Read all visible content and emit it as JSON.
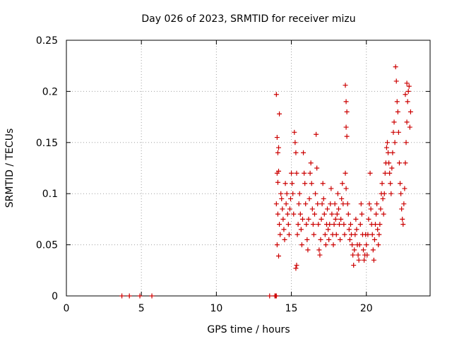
{
  "chart_data": {
    "type": "scatter",
    "title": "Day 026 of 2023, SRMTID for receiver mizu",
    "xlabel": "GPS time / hours",
    "ylabel": "SRMTID / TECUs",
    "xlim": [
      0,
      24.25
    ],
    "ylim": [
      0,
      0.25
    ],
    "xticks": [
      0,
      5,
      10,
      15,
      20
    ],
    "yticks": [
      0,
      0.05,
      0.1,
      0.15,
      0.2,
      0.25
    ],
    "xtick_labels": [
      "0",
      "5",
      "10",
      "15",
      "20"
    ],
    "ytick_labels": [
      "0",
      "0.05",
      "0.1",
      "0.15",
      "0.2",
      "0.25"
    ],
    "grid": true,
    "marker": "plus",
    "color": "#cc0000",
    "series": [
      {
        "points": [
          [
            3.7,
            0.0
          ],
          [
            4.2,
            0.0
          ],
          [
            4.9,
            0.0
          ],
          [
            5.7,
            0.0
          ],
          [
            13.55,
            0.0
          ],
          [
            13.9,
            0.0
          ],
          [
            13.95,
            0.0
          ],
          [
            14.0,
            0.0
          ],
          [
            14.0,
            0.197
          ],
          [
            14.05,
            0.155
          ],
          [
            14.1,
            0.14
          ],
          [
            14.15,
            0.145
          ],
          [
            14.2,
            0.178
          ],
          [
            14.05,
            0.12
          ],
          [
            14.1,
            0.111
          ],
          [
            14.15,
            0.122
          ],
          [
            14.0,
            0.09
          ],
          [
            14.1,
            0.08
          ],
          [
            14.2,
            0.07
          ],
          [
            14.05,
            0.05
          ],
          [
            14.15,
            0.039
          ],
          [
            14.25,
            0.06
          ],
          [
            14.3,
            0.1
          ],
          [
            14.35,
            0.095
          ],
          [
            14.4,
            0.085
          ],
          [
            14.45,
            0.075
          ],
          [
            14.5,
            0.065
          ],
          [
            14.55,
            0.055
          ],
          [
            14.6,
            0.11
          ],
          [
            14.65,
            0.09
          ],
          [
            14.7,
            0.1
          ],
          [
            14.75,
            0.08
          ],
          [
            14.8,
            0.07
          ],
          [
            14.85,
            0.06
          ],
          [
            14.9,
            0.085
          ],
          [
            14.95,
            0.095
          ],
          [
            15.0,
            0.12
          ],
          [
            15.05,
            0.11
          ],
          [
            15.1,
            0.1
          ],
          [
            15.15,
            0.08
          ],
          [
            15.2,
            0.16
          ],
          [
            15.25,
            0.15
          ],
          [
            15.3,
            0.14
          ],
          [
            15.35,
            0.12
          ],
          [
            15.3,
            0.027
          ],
          [
            15.35,
            0.03
          ],
          [
            15.4,
            0.06
          ],
          [
            15.45,
            0.07
          ],
          [
            15.5,
            0.09
          ],
          [
            15.55,
            0.1
          ],
          [
            15.6,
            0.08
          ],
          [
            15.65,
            0.065
          ],
          [
            15.7,
            0.05
          ],
          [
            15.75,
            0.075
          ],
          [
            15.8,
            0.14
          ],
          [
            15.85,
            0.12
          ],
          [
            15.9,
            0.11
          ],
          [
            15.95,
            0.09
          ],
          [
            16.0,
            0.07
          ],
          [
            16.05,
            0.055
          ],
          [
            16.1,
            0.045
          ],
          [
            16.15,
            0.075
          ],
          [
            16.2,
            0.095
          ],
          [
            16.25,
            0.12
          ],
          [
            16.3,
            0.13
          ],
          [
            16.35,
            0.11
          ],
          [
            16.4,
            0.085
          ],
          [
            16.45,
            0.07
          ],
          [
            16.5,
            0.06
          ],
          [
            16.55,
            0.08
          ],
          [
            16.6,
            0.1
          ],
          [
            16.65,
            0.158
          ],
          [
            16.7,
            0.125
          ],
          [
            16.75,
            0.09
          ],
          [
            16.8,
            0.07
          ],
          [
            16.85,
            0.045
          ],
          [
            16.9,
            0.04
          ],
          [
            16.95,
            0.055
          ],
          [
            17.0,
            0.075
          ],
          [
            17.05,
            0.09
          ],
          [
            17.1,
            0.11
          ],
          [
            17.15,
            0.095
          ],
          [
            17.2,
            0.08
          ],
          [
            17.25,
            0.06
          ],
          [
            17.3,
            0.05
          ],
          [
            17.35,
            0.07
          ],
          [
            17.4,
            0.085
          ],
          [
            17.45,
            0.065
          ],
          [
            17.5,
            0.055
          ],
          [
            17.55,
            0.07
          ],
          [
            17.6,
            0.09
          ],
          [
            17.65,
            0.105
          ],
          [
            17.7,
            0.08
          ],
          [
            17.75,
            0.06
          ],
          [
            17.8,
            0.05
          ],
          [
            17.85,
            0.07
          ],
          [
            17.9,
            0.09
          ],
          [
            17.95,
            0.075
          ],
          [
            18.0,
            0.06
          ],
          [
            18.05,
            0.08
          ],
          [
            18.1,
            0.1
          ],
          [
            18.15,
            0.085
          ],
          [
            18.2,
            0.07
          ],
          [
            18.25,
            0.055
          ],
          [
            18.3,
            0.075
          ],
          [
            18.35,
            0.095
          ],
          [
            18.4,
            0.11
          ],
          [
            18.45,
            0.09
          ],
          [
            18.5,
            0.07
          ],
          [
            18.55,
            0.06
          ],
          [
            18.6,
            0.12
          ],
          [
            18.65,
            0.105
          ],
          [
            18.6,
            0.206
          ],
          [
            18.65,
            0.19
          ],
          [
            18.7,
            0.18
          ],
          [
            18.65,
            0.165
          ],
          [
            18.7,
            0.156
          ],
          [
            18.75,
            0.09
          ],
          [
            18.8,
            0.08
          ],
          [
            18.85,
            0.065
          ],
          [
            18.9,
            0.055
          ],
          [
            18.95,
            0.07
          ],
          [
            19.0,
            0.06
          ],
          [
            19.05,
            0.05
          ],
          [
            19.1,
            0.04
          ],
          [
            19.15,
            0.03
          ],
          [
            19.2,
            0.045
          ],
          [
            19.25,
            0.06
          ],
          [
            19.3,
            0.075
          ],
          [
            19.35,
            0.065
          ],
          [
            19.4,
            0.05
          ],
          [
            19.45,
            0.04
          ],
          [
            19.5,
            0.035
          ],
          [
            19.55,
            0.05
          ],
          [
            19.6,
            0.07
          ],
          [
            19.65,
            0.09
          ],
          [
            19.7,
            0.08
          ],
          [
            19.75,
            0.06
          ],
          [
            19.8,
            0.045
          ],
          [
            19.85,
            0.035
          ],
          [
            19.9,
            0.04
          ],
          [
            19.95,
            0.06
          ],
          [
            20.0,
            0.05
          ],
          [
            20.05,
            0.04
          ],
          [
            20.1,
            0.06
          ],
          [
            20.15,
            0.075
          ],
          [
            20.2,
            0.09
          ],
          [
            20.25,
            0.12
          ],
          [
            20.3,
            0.085
          ],
          [
            20.35,
            0.07
          ],
          [
            20.4,
            0.06
          ],
          [
            20.45,
            0.045
          ],
          [
            20.5,
            0.035
          ],
          [
            20.55,
            0.055
          ],
          [
            20.6,
            0.07
          ],
          [
            20.65,
            0.08
          ],
          [
            20.7,
            0.09
          ],
          [
            20.75,
            0.065
          ],
          [
            20.8,
            0.05
          ],
          [
            20.85,
            0.06
          ],
          [
            20.9,
            0.07
          ],
          [
            20.95,
            0.085
          ],
          [
            21.0,
            0.1
          ],
          [
            21.05,
            0.11
          ],
          [
            21.1,
            0.095
          ],
          [
            21.15,
            0.08
          ],
          [
            21.2,
            0.1
          ],
          [
            21.25,
            0.12
          ],
          [
            21.3,
            0.13
          ],
          [
            21.35,
            0.145
          ],
          [
            21.4,
            0.15
          ],
          [
            21.45,
            0.14
          ],
          [
            21.5,
            0.13
          ],
          [
            21.55,
            0.12
          ],
          [
            21.6,
            0.11
          ],
          [
            21.65,
            0.1
          ],
          [
            21.7,
            0.125
          ],
          [
            21.75,
            0.14
          ],
          [
            21.8,
            0.16
          ],
          [
            21.85,
            0.17
          ],
          [
            21.9,
            0.15
          ],
          [
            21.95,
            0.224
          ],
          [
            22.0,
            0.21
          ],
          [
            22.05,
            0.19
          ],
          [
            22.1,
            0.18
          ],
          [
            22.15,
            0.16
          ],
          [
            22.2,
            0.13
          ],
          [
            22.25,
            0.11
          ],
          [
            22.3,
            0.1
          ],
          [
            22.35,
            0.085
          ],
          [
            22.4,
            0.075
          ],
          [
            22.45,
            0.07
          ],
          [
            22.5,
            0.09
          ],
          [
            22.55,
            0.105
          ],
          [
            22.6,
            0.13
          ],
          [
            22.65,
            0.15
          ],
          [
            22.7,
            0.17
          ],
          [
            22.75,
            0.19
          ],
          [
            22.8,
            0.2
          ],
          [
            22.85,
            0.205
          ],
          [
            22.9,
            0.165
          ],
          [
            22.95,
            0.18
          ],
          [
            22.6,
            0.197
          ],
          [
            22.7,
            0.208
          ]
        ]
      }
    ]
  }
}
